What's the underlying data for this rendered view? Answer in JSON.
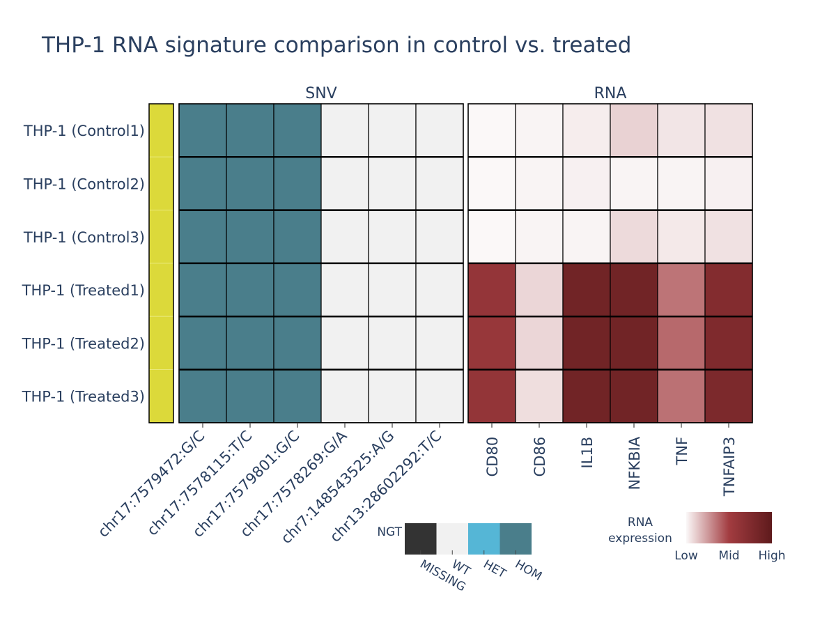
{
  "chart_data": {
    "type": "heatmap",
    "title": "THP-1 RNA signature comparison in control vs. treated",
    "rows": [
      "THP-1 (Control1)",
      "THP-1 (Control2)",
      "THP-1 (Control3)",
      "THP-1 (Treated1)",
      "THP-1 (Treated2)",
      "THP-1 (Treated3)"
    ],
    "panels": {
      "snv": {
        "title": "SNV",
        "columns": [
          "chr17:7579472:G/C",
          "chr17:7578115:T/C",
          "chr17:7579801:G/C",
          "chr17:7578269:G/A",
          "chr7:148543525:A/G",
          "chr13:28602292:T/C"
        ],
        "values": [
          [
            "HOM",
            "HOM",
            "HOM",
            "WT",
            "WT",
            "WT"
          ],
          [
            "HOM",
            "HOM",
            "HOM",
            "WT",
            "WT",
            "WT"
          ],
          [
            "HOM",
            "HOM",
            "HOM",
            "WT",
            "WT",
            "WT"
          ],
          [
            "HOM",
            "HOM",
            "HOM",
            "WT",
            "WT",
            "WT"
          ],
          [
            "HOM",
            "HOM",
            "HOM",
            "WT",
            "WT",
            "WT"
          ],
          [
            "HOM",
            "HOM",
            "HOM",
            "WT",
            "WT",
            "WT"
          ]
        ]
      },
      "rna": {
        "title": "RNA",
        "columns": [
          "CD80",
          "CD86",
          "IL1B",
          "NFKBIA",
          "TNF",
          "TNFAIP3"
        ],
        "values": [
          [
            0.0,
            0.01,
            0.03,
            0.1,
            0.05,
            0.06
          ],
          [
            0.0,
            0.01,
            0.02,
            0.01,
            0.01,
            0.02
          ],
          [
            0.0,
            0.01,
            0.01,
            0.08,
            0.04,
            0.06
          ],
          [
            0.6,
            0.09,
            0.86,
            0.86,
            0.35,
            0.73
          ],
          [
            0.58,
            0.09,
            0.86,
            0.86,
            0.38,
            0.76
          ],
          [
            0.61,
            0.07,
            0.86,
            0.86,
            0.36,
            0.78
          ]
        ]
      }
    },
    "group_colors": [
      "#dcd93a",
      "#dcd93a",
      "#dcd93a",
      "#dcd93a",
      "#dcd93a",
      "#dcd93a"
    ],
    "ngt_legend": {
      "title": "NGT",
      "categories": [
        "MISSING",
        "WT",
        "HET",
        "HOM"
      ],
      "colors": [
        "#333333",
        "#f1f1f1",
        "#55b6d6",
        "#4a7e8b"
      ]
    },
    "rna_legend": {
      "title_line1": "RNA",
      "title_line2": "expression",
      "tick_labels": [
        "Low",
        "Mid",
        "High"
      ],
      "colors": [
        "#fbf8f8",
        "#a23c40",
        "#5e1a1c"
      ]
    }
  }
}
